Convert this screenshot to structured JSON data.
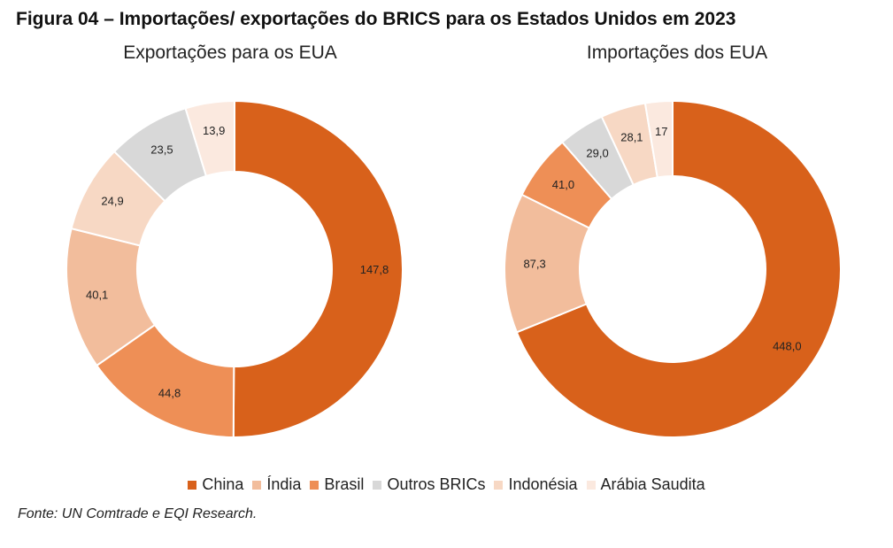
{
  "figure_title": "Figura 04 – Importações/ exportações do BRICS para os Estados Unidos em 2023",
  "source": "Fonte: UN Comtrade e EQI Research.",
  "chart_data": [
    {
      "type": "donut",
      "title": "Exportações para os EUA",
      "categories": [
        "China",
        "Índia",
        "Brasil",
        "Outros BRICs",
        "Indonésia",
        "Arábia Saudita"
      ],
      "slices": [
        {
          "name": "China",
          "value": 147.8,
          "label": "147,8"
        },
        {
          "name": "Brasil",
          "value": 44.8,
          "label": "44,8"
        },
        {
          "name": "Índia",
          "value": 40.1,
          "label": "40,1"
        },
        {
          "name": "Indonésia",
          "value": 24.9,
          "label": "24,9"
        },
        {
          "name": "Outros BRICs",
          "value": 23.5,
          "label": "23,5"
        },
        {
          "name": "Arábia Saudita",
          "value": 13.9,
          "label": "13,9"
        }
      ]
    },
    {
      "type": "donut",
      "title": "Importações dos EUA",
      "categories": [
        "China",
        "Índia",
        "Brasil",
        "Outros BRICs",
        "Indonésia",
        "Arábia Saudita"
      ],
      "slices": [
        {
          "name": "China",
          "value": 448.0,
          "label": "448,0"
        },
        {
          "name": "Índia",
          "value": 87.3,
          "label": "87,3"
        },
        {
          "name": "Brasil",
          "value": 41.0,
          "label": "41,0"
        },
        {
          "name": "Outros BRICs",
          "value": 29.0,
          "label": "29,0"
        },
        {
          "name": "Indonésia",
          "value": 28.1,
          "label": "28,1"
        },
        {
          "name": "Arábia Saudita",
          "value": 17,
          "label": "17"
        }
      ]
    }
  ],
  "legend": [
    {
      "name": "China",
      "color": "#d8611b"
    },
    {
      "name": "Índia",
      "color": "#f2bd9c"
    },
    {
      "name": "Brasil",
      "color": "#ee8f56"
    },
    {
      "name": "Outros BRICs",
      "color": "#d8d8d8"
    },
    {
      "name": "Indonésia",
      "color": "#f7d8c4"
    },
    {
      "name": "Arábia Saudita",
      "color": "#fbe9df"
    }
  ]
}
